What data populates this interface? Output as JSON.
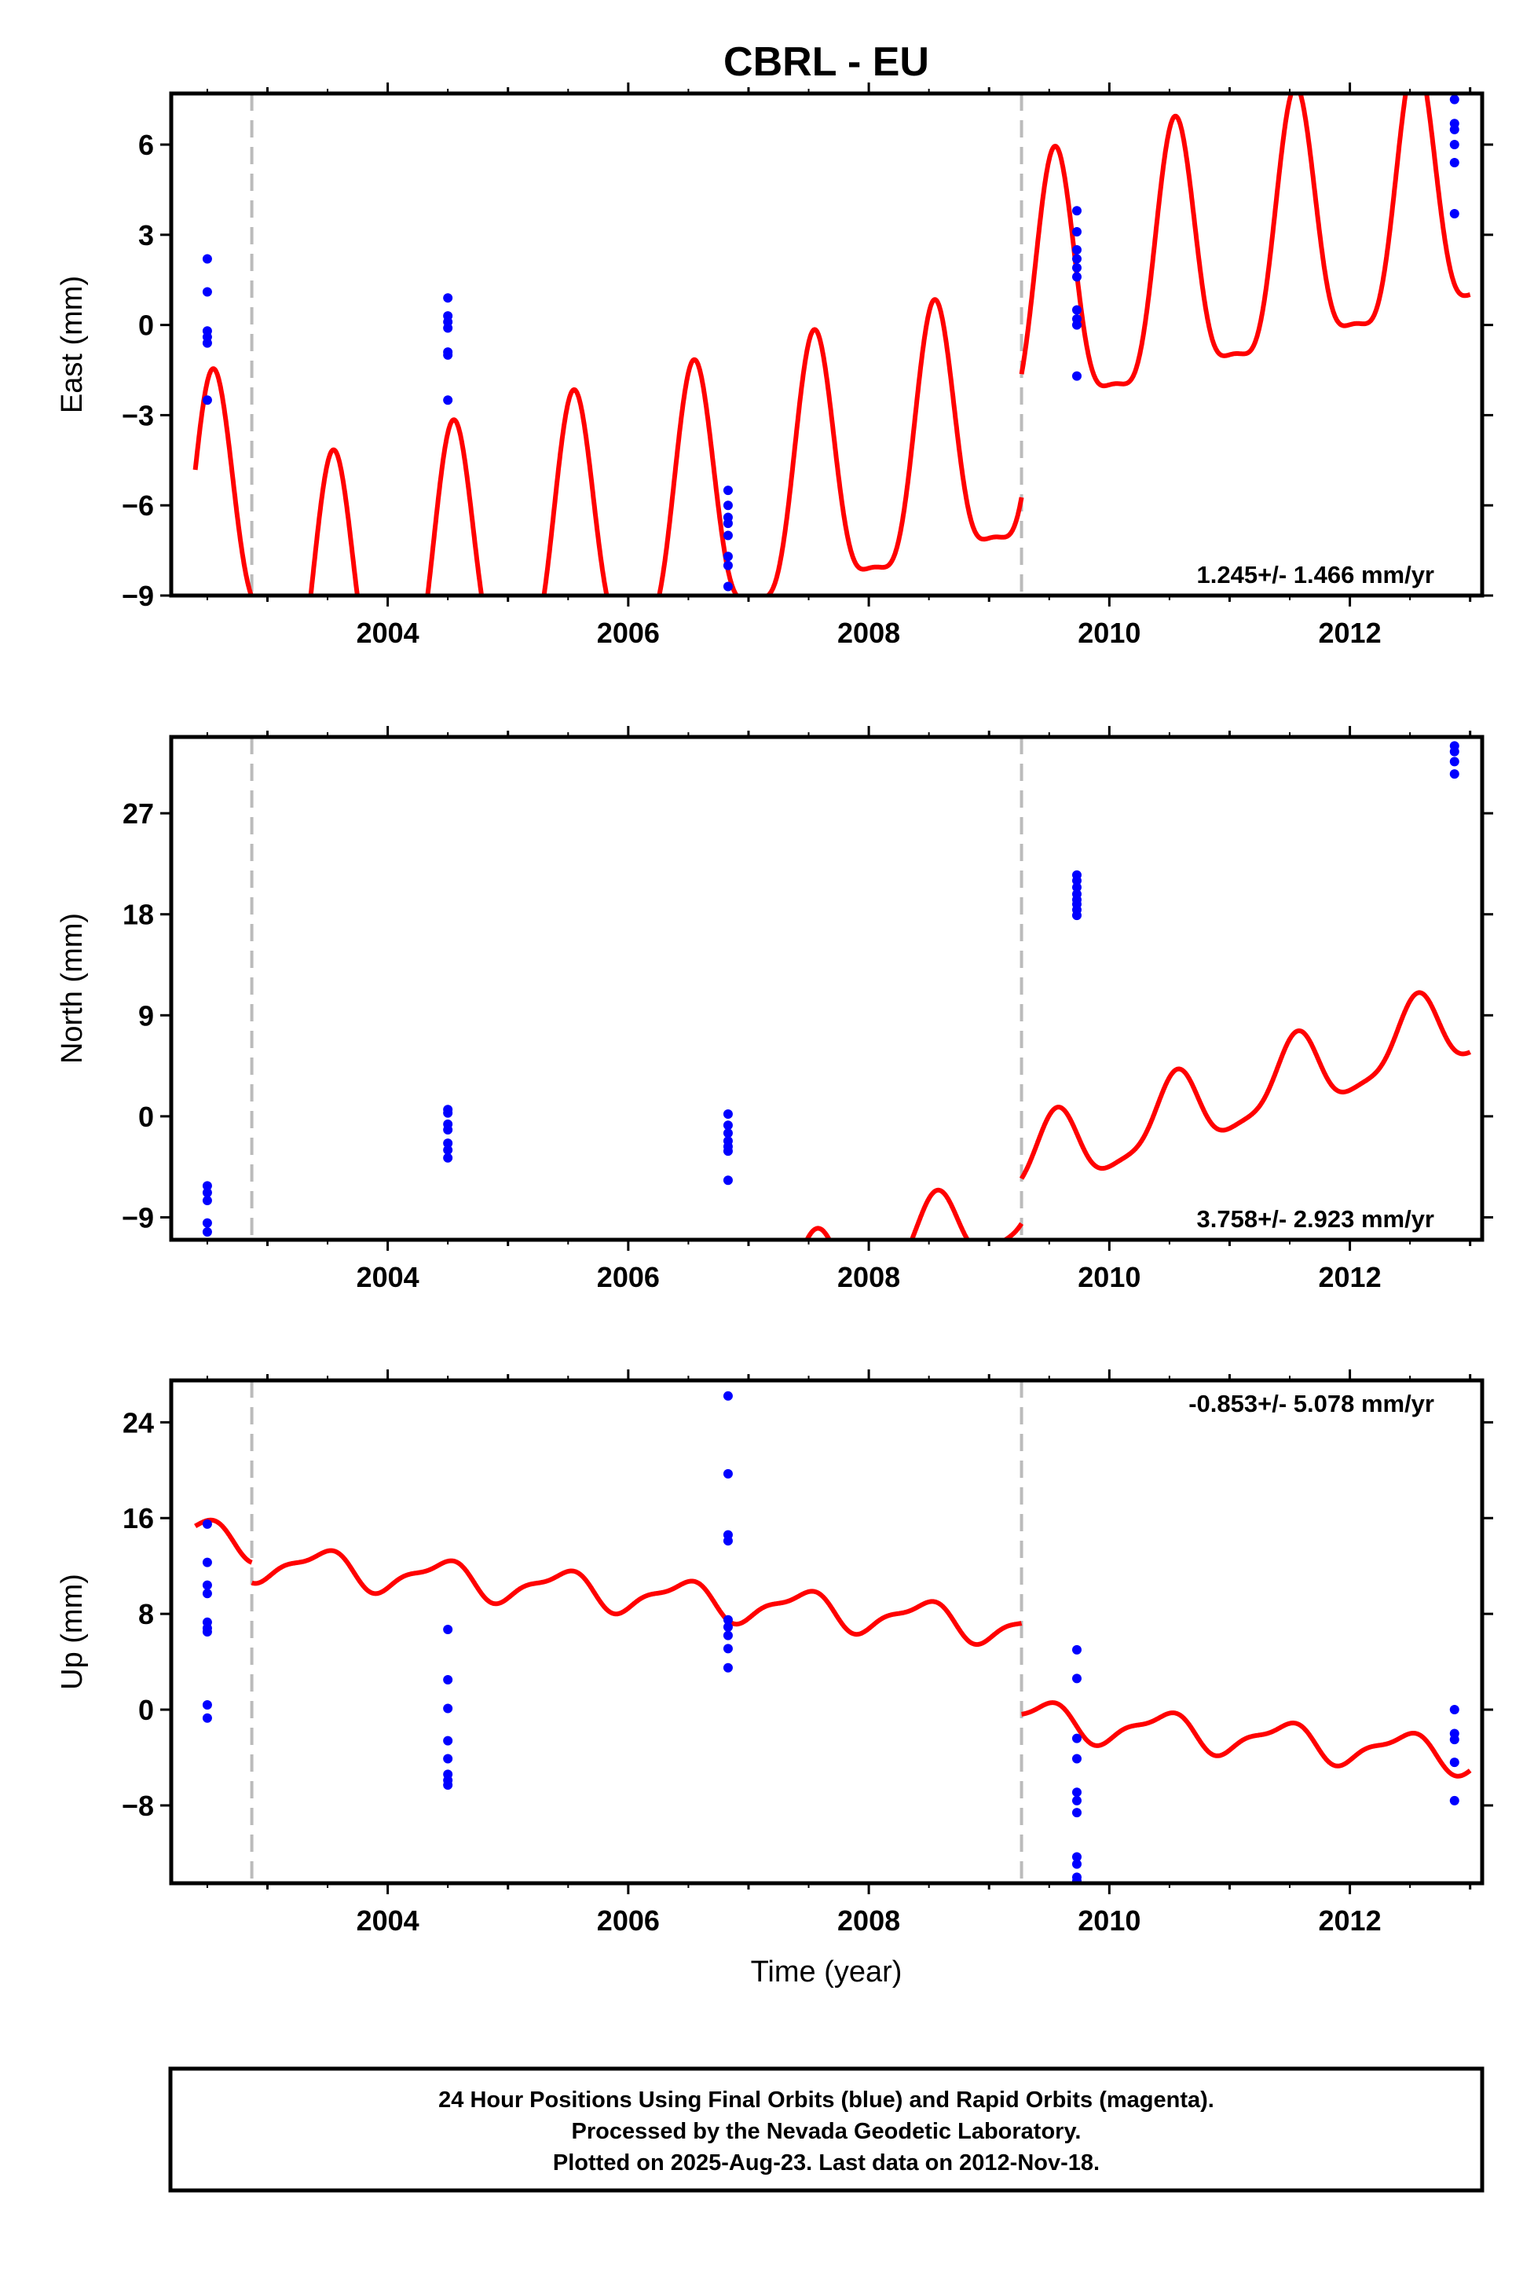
{
  "title": "CBRL - EU",
  "xlabel": "Time (year)",
  "footer": {
    "line1": "24 Hour Positions Using Final Orbits (blue) and Rapid Orbits (magenta).",
    "line2": "Processed by the Nevada Geodetic Laboratory.",
    "line3": "Plotted on 2025-Aug-23. Last data on 2012-Nov-18."
  },
  "colors": {
    "model": "#ff0000",
    "final_orbits": "#0000ff",
    "equipment_change": "#bbbbbb",
    "frame": "#000000"
  },
  "chart_data": [
    {
      "type": "scatter",
      "component": "east",
      "ylabel": "East (mm)",
      "rate_text": "1.245+/- 1.466 mm/yr",
      "xlim": [
        2002.2,
        2013.1
      ],
      "ylim": [
        -9,
        7.7
      ],
      "xticks": [
        2004,
        2006,
        2008,
        2010,
        2012
      ],
      "xtick_labels": [
        "2004",
        "2006",
        "2008",
        "2010",
        "2012"
      ],
      "yticks": [
        -9,
        -6,
        -3,
        0,
        3,
        6
      ],
      "ytick_labels": [
        "−9",
        "−6",
        "−3",
        "0",
        "3",
        "6"
      ],
      "grid": false,
      "equipment_change_lines": [
        2002.87,
        2009.27
      ],
      "model": {
        "linear_rate": 1.0,
        "annual_amp": 4.2,
        "annual_phase": -1.88,
        "semiannual_amp": 1.2,
        "semiannual_phase": 1.0,
        "segments": [
          {
            "start": 2002.4,
            "end": 2002.87,
            "offset": -2.4
          },
          {
            "start": 2002.87,
            "end": 2009.27,
            "offset": -6.1
          },
          {
            "start": 2009.27,
            "end": 2013.0,
            "offset": -2.0
          }
        ]
      },
      "points": [
        {
          "x": 2002.5,
          "y": [
            2.2,
            1.1,
            -0.2,
            -0.4,
            -0.6,
            -2.5
          ]
        },
        {
          "x": 2004.5,
          "y": [
            0.9,
            0.3,
            0.1,
            -0.1,
            -0.9,
            -1.0,
            -2.5
          ]
        },
        {
          "x": 2006.83,
          "y": [
            -5.5,
            -6.0,
            -6.4,
            -6.6,
            -7.0,
            -7.7,
            -8.0,
            -8.7
          ]
        },
        {
          "x": 2009.73,
          "y": [
            3.8,
            3.1,
            2.5,
            2.2,
            1.9,
            1.6,
            0.5,
            0.2,
            0.0,
            -1.7
          ]
        },
        {
          "x": 2012.87,
          "y": [
            7.5,
            6.7,
            6.5,
            6.0,
            5.4,
            3.7
          ]
        }
      ]
    },
    {
      "type": "scatter",
      "component": "north",
      "ylabel": "North (mm)",
      "rate_text": "3.758+/- 2.923 mm/yr",
      "xlim": [
        2002.2,
        2013.1
      ],
      "ylim": [
        -11,
        33.8
      ],
      "xticks": [
        2004,
        2006,
        2008,
        2010,
        2012
      ],
      "xtick_labels": [
        "2004",
        "2006",
        "2008",
        "2010",
        "2012"
      ],
      "yticks": [
        -9,
        0,
        9,
        18,
        27
      ],
      "ytick_labels": [
        "−9",
        "0",
        "9",
        "18",
        "27"
      ],
      "grid": false,
      "equipment_change_lines": [
        2002.87,
        2009.27
      ],
      "model": {
        "linear_rate": 3.4,
        "annual_amp": 3.3,
        "annual_phase": -1.9,
        "semiannual_amp": 0.8,
        "semiannual_phase": 0.6,
        "segments": [
          {
            "start": 2002.4,
            "end": 2002.87,
            "offset": -9.5
          },
          {
            "start": 2002.87,
            "end": 2009.27,
            "offset": -16.0
          },
          {
            "start": 2009.27,
            "end": 2013.0,
            "offset": -12.0
          }
        ]
      },
      "points": [
        {
          "x": 2002.5,
          "y": [
            -6.2,
            -6.8,
            -7.5,
            -9.5,
            -10.3
          ]
        },
        {
          "x": 2004.5,
          "y": [
            0.6,
            0.3,
            -0.7,
            -1.2,
            -2.4,
            -3.0,
            -3.7
          ]
        },
        {
          "x": 2006.83,
          "y": [
            0.2,
            -0.8,
            -1.5,
            -2.2,
            -2.7,
            -3.1,
            -5.7
          ]
        },
        {
          "x": 2009.73,
          "y": [
            21.5,
            21.0,
            20.4,
            19.8,
            19.3,
            18.9,
            18.4,
            17.9
          ]
        },
        {
          "x": 2012.87,
          "y": [
            33.0,
            32.5,
            31.6,
            30.5
          ]
        }
      ]
    },
    {
      "type": "scatter",
      "component": "up",
      "ylabel": "Up (mm)",
      "rate_text": "-0.853+/- 5.078 mm/yr",
      "xlim": [
        2002.2,
        2013.1
      ],
      "ylim": [
        -14.5,
        27.5
      ],
      "xticks": [
        2004,
        2006,
        2008,
        2010,
        2012
      ],
      "xtick_labels": [
        "2004",
        "2006",
        "2008",
        "2010",
        "2012"
      ],
      "yticks": [
        -8,
        0,
        8,
        16,
        24
      ],
      "ytick_labels": [
        "−8",
        "0",
        "8",
        "16",
        "24"
      ],
      "grid": false,
      "equipment_change_lines": [
        2002.87,
        2009.27
      ],
      "model": {
        "linear_rate": -0.85,
        "annual_amp": 1.4,
        "annual_phase": -1.25,
        "semiannual_amp": 0.5,
        "semiannual_phase": 0.3,
        "segments": [
          {
            "start": 2002.4,
            "end": 2002.87,
            "offset": 10.5
          },
          {
            "start": 2002.87,
            "end": 2009.27,
            "offset": 8.8
          },
          {
            "start": 2009.27,
            "end": 2013.0,
            "offset": 1.2
          }
        ]
      },
      "points": [
        {
          "x": 2002.5,
          "y": [
            15.5,
            12.3,
            10.4,
            9.7,
            7.3,
            6.8,
            6.5,
            0.4,
            -0.7
          ]
        },
        {
          "x": 2004.5,
          "y": [
            6.7,
            2.5,
            0.1,
            -2.6,
            -4.1,
            -5.4,
            -5.9,
            -6.3
          ]
        },
        {
          "x": 2006.83,
          "y": [
            26.2,
            19.7,
            14.6,
            14.1,
            7.5,
            6.9,
            6.2,
            5.1,
            3.5
          ]
        },
        {
          "x": 2009.73,
          "y": [
            5.0,
            2.6,
            -2.4,
            -4.1,
            -6.9,
            -7.6,
            -8.6,
            -12.3,
            -12.9,
            -14.0,
            -14.3
          ]
        },
        {
          "x": 2012.87,
          "y": [
            0.0,
            -2.0,
            -2.5,
            -4.4,
            -7.6
          ]
        }
      ]
    }
  ]
}
